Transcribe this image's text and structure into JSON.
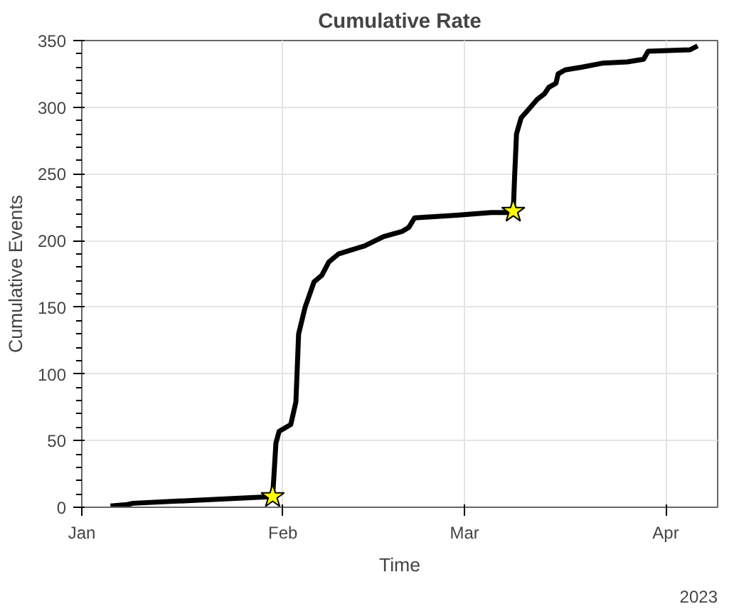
{
  "chart_data": {
    "type": "line",
    "title": "Cumulative Rate",
    "xlabel": "Time",
    "ylabel": "Cumulative Events",
    "annotations": [
      "2023"
    ],
    "xlim": [
      "2023-01-01",
      "2023-04-09"
    ],
    "ylim": [
      0,
      350
    ],
    "xticks": [
      {
        "value": "2023-01-01",
        "label": "Jan"
      },
      {
        "value": "2023-02-01",
        "label": "Feb"
      },
      {
        "value": "2023-03-01",
        "label": "Mar"
      },
      {
        "value": "2023-04-01",
        "label": "Apr"
      }
    ],
    "yticks": [
      0,
      50,
      100,
      150,
      200,
      250,
      300,
      350
    ],
    "grid": true,
    "series": [
      {
        "color": "#000000",
        "marker": "none",
        "line_style": "solid",
        "x": [
          "2023-01-05T10:00",
          "2023-01-08T00:00",
          "2023-01-08T22:00",
          "2023-01-30T10:00",
          "2023-01-30T22:00",
          "2023-01-31T10:00",
          "2023-02-02T05:00",
          "2023-02-03T00:00",
          "2023-02-03T10:00",
          "2023-02-04T10:00",
          "2023-02-05T19:00",
          "2023-02-07T00:00",
          "2023-02-08T02:00",
          "2023-02-09T14:00",
          "2023-02-13T14:00",
          "2023-02-16T12:00",
          "2023-02-19T10:00",
          "2023-02-20T10:00",
          "2023-02-21T07:00",
          "2023-02-27T19:00",
          "2023-03-05T02:00",
          "2023-03-07T14:00",
          "2023-03-08T12:00",
          "2023-03-08T17:00",
          "2023-03-09T00:00",
          "2023-03-09T17:00",
          "2023-03-10T19:00",
          "2023-03-12T05:00",
          "2023-03-13T07:00",
          "2023-03-14T00:00",
          "2023-03-15T02:00",
          "2023-03-15T10:00",
          "2023-03-16T12:00",
          "2023-03-19T00:00",
          "2023-03-22T05:00",
          "2023-03-26T02:00",
          "2023-03-28T14:00",
          "2023-03-29T07:00",
          "2023-04-04T17:00",
          "2023-04-05T22:00"
        ],
        "values": [
          1,
          2,
          3,
          8,
          48,
          57,
          62,
          79,
          130,
          150,
          169,
          174,
          184,
          190,
          196,
          203,
          207,
          210,
          217,
          219,
          221,
          221,
          222,
          248,
          280,
          292,
          298,
          306,
          310,
          315,
          318,
          325,
          328,
          330,
          333,
          334,
          336,
          342,
          343,
          346
        ]
      },
      {
        "type": "scatter",
        "color": "#ffff00",
        "marker": "star",
        "x": [
          "2023-01-30T10:00",
          "2023-03-08T12:00"
        ],
        "values": [
          8,
          222
        ]
      }
    ]
  }
}
